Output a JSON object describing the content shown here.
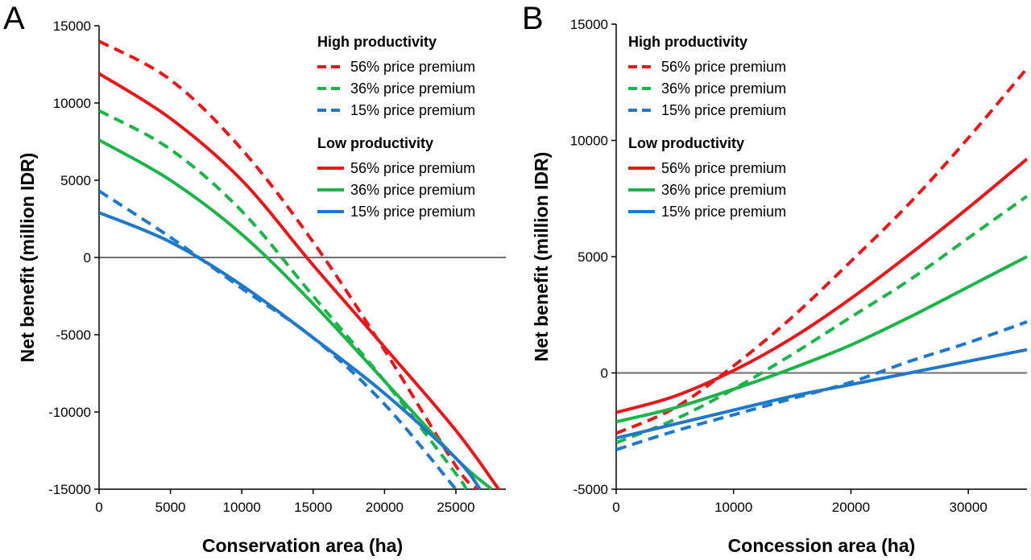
{
  "colors": {
    "red": "#e31a1c",
    "green": "#1db34a",
    "blue": "#1f78c8",
    "zero_line": "#6e6e6e"
  },
  "chart_data": [
    {
      "panel": "A",
      "type": "line",
      "xlabel": "Conservation area (ha)",
      "ylabel": "Net benefit (million IDR)",
      "xlim": [
        0,
        28500
      ],
      "ylim": [
        -15000,
        15000
      ],
      "xticks": [
        0,
        5000,
        10000,
        15000,
        20000,
        25000
      ],
      "yticks": [
        15000,
        10000,
        5000,
        0,
        -5000,
        -10000,
        -15000
      ],
      "legend": [
        {
          "heading": "High productivity",
          "entries": [
            "56% price premium",
            "36% price premium",
            "15% price premium"
          ]
        },
        {
          "heading": "Low productivity",
          "entries": [
            "56% price premium",
            "36% price premium",
            "15% price premium"
          ]
        }
      ],
      "series": [
        {
          "group": "High productivity",
          "premium": "56% price premium",
          "color": "red",
          "style": "dashed",
          "x": [
            0,
            5000,
            10000,
            15000,
            20000,
            25000,
            26500
          ],
          "y": [
            14000,
            11500,
            7000,
            1000,
            -6000,
            -13500,
            -15000
          ]
        },
        {
          "group": "High productivity",
          "premium": "36% price premium",
          "color": "green",
          "style": "dashed",
          "x": [
            0,
            5000,
            10000,
            15000,
            20000,
            25000,
            25700
          ],
          "y": [
            9500,
            7000,
            3000,
            -2500,
            -8000,
            -14000,
            -15000
          ]
        },
        {
          "group": "High productivity",
          "premium": "15% price premium",
          "color": "blue",
          "style": "dashed",
          "x": [
            0,
            5000,
            10000,
            15000,
            20000,
            25000
          ],
          "y": [
            4300,
            1300,
            -2000,
            -5200,
            -9500,
            -15000
          ]
        },
        {
          "group": "Low productivity",
          "premium": "56% price premium",
          "color": "red",
          "style": "solid",
          "x": [
            0,
            5000,
            10000,
            15000,
            20000,
            25000,
            28000
          ],
          "y": [
            11900,
            9000,
            5000,
            -500,
            -5800,
            -11200,
            -15000
          ]
        },
        {
          "group": "Low productivity",
          "premium": "36% price premium",
          "color": "green",
          "style": "solid",
          "x": [
            0,
            5000,
            10000,
            15000,
            20000,
            25000,
            27500
          ],
          "y": [
            7600,
            5000,
            1500,
            -3000,
            -8000,
            -13000,
            -15000
          ]
        },
        {
          "group": "Low productivity",
          "premium": "15% price premium",
          "color": "blue",
          "style": "solid",
          "x": [
            0,
            5000,
            10000,
            15000,
            20000,
            25000,
            26700
          ],
          "y": [
            2900,
            1000,
            -1800,
            -5200,
            -8800,
            -13000,
            -15000
          ]
        }
      ]
    },
    {
      "panel": "B",
      "type": "line",
      "xlabel": "Concession area (ha)",
      "ylabel": "Net benefit (million IDR)",
      "xlim": [
        0,
        35000
      ],
      "ylim": [
        -5000,
        15000
      ],
      "xticks": [
        0,
        10000,
        20000,
        30000
      ],
      "yticks": [
        15000,
        10000,
        5000,
        0,
        -5000
      ],
      "legend": [
        {
          "heading": "High productivity",
          "entries": [
            "56% price premium",
            "36% price premium",
            "15% price premium"
          ]
        },
        {
          "heading": "Low productivity",
          "entries": [
            "56% price premium",
            "36% price premium",
            "15% price premium"
          ]
        }
      ],
      "series": [
        {
          "group": "High productivity",
          "premium": "56% price premium",
          "color": "red",
          "style": "dashed",
          "x": [
            0,
            5000,
            10000,
            15000,
            20000,
            25000,
            30000,
            35000
          ],
          "y": [
            -2600,
            -1500,
            300,
            2400,
            4800,
            7300,
            10100,
            13100
          ]
        },
        {
          "group": "High productivity",
          "premium": "36% price premium",
          "color": "green",
          "style": "dashed",
          "x": [
            0,
            5000,
            10000,
            15000,
            20000,
            25000,
            30000,
            35000
          ],
          "y": [
            -3000,
            -2000,
            -700,
            800,
            2400,
            4000,
            5800,
            7600
          ]
        },
        {
          "group": "High productivity",
          "premium": "15% price premium",
          "color": "blue",
          "style": "dashed",
          "x": [
            0,
            5000,
            10000,
            15000,
            20000,
            25000,
            30000,
            35000
          ],
          "y": [
            -3300,
            -2500,
            -1800,
            -1100,
            -400,
            500,
            1300,
            2200
          ]
        },
        {
          "group": "Low productivity",
          "premium": "56% price premium",
          "color": "red",
          "style": "solid",
          "x": [
            0,
            5000,
            10000,
            15000,
            20000,
            25000,
            30000,
            35000
          ],
          "y": [
            -1700,
            -1000,
            100,
            1500,
            3200,
            5100,
            7100,
            9200
          ]
        },
        {
          "group": "Low productivity",
          "premium": "36% price premium",
          "color": "green",
          "style": "solid",
          "x": [
            0,
            5000,
            10000,
            15000,
            20000,
            25000,
            30000,
            35000
          ],
          "y": [
            -2100,
            -1500,
            -700,
            200,
            1200,
            2400,
            3700,
            5000
          ]
        },
        {
          "group": "Low productivity",
          "premium": "15% price premium",
          "color": "blue",
          "style": "solid",
          "x": [
            0,
            5000,
            10000,
            15000,
            20000,
            25000,
            30000,
            35000
          ],
          "y": [
            -2800,
            -2200,
            -1600,
            -1000,
            -500,
            0,
            500,
            1000
          ]
        }
      ]
    }
  ]
}
